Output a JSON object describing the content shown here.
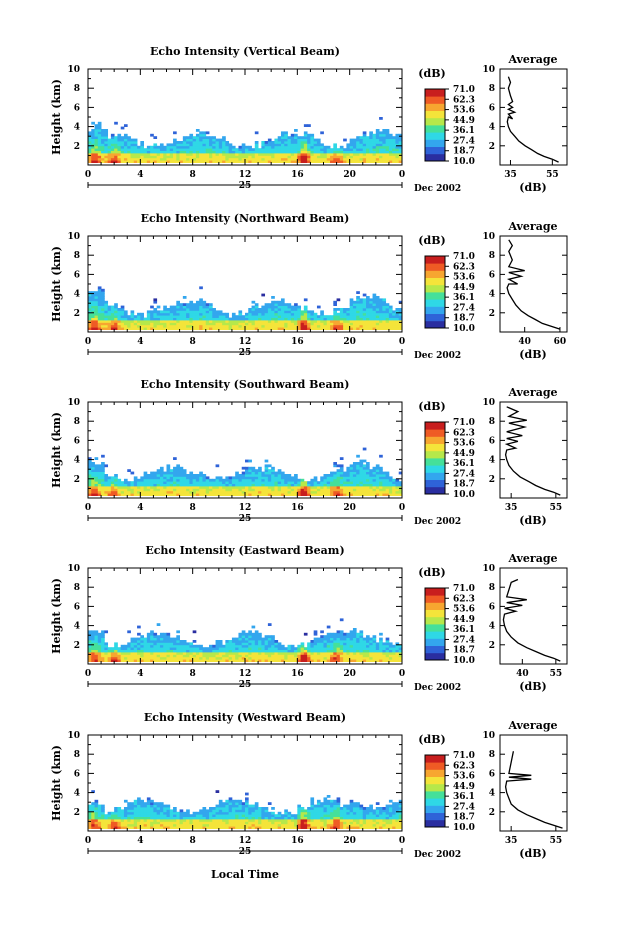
{
  "figure": {
    "bottom_xlabel": "Local Time",
    "colormap": [
      "#2a2ea0",
      "#2f63d8",
      "#33a6ee",
      "#2fd8e6",
      "#45e09a",
      "#b6e84a",
      "#f4e43a",
      "#f7a630",
      "#ef5b25",
      "#c81e1e"
    ],
    "colorbar_unit": "(dB)",
    "colorbar_ticks": [
      "71.0",
      "62.3",
      "53.6",
      "44.9",
      "36.1",
      "27.4",
      "18.7",
      "10.0"
    ],
    "time_ticks": [
      "0",
      "4",
      "8",
      "12",
      "16",
      "20",
      "0"
    ],
    "date_label": "25",
    "month_label": "Dec 2002",
    "height_ticks": [
      "10",
      "8",
      "6",
      "4",
      "2"
    ],
    "ylabel": "Height (km)",
    "avg_title": "Average",
    "avg_xlabel": "(dB)"
  },
  "chart_data": [
    {
      "type": "heatmap",
      "title": "Echo Intensity (Vertical Beam)",
      "xlabel": "Local Time",
      "ylabel": "Height (km)",
      "xlim": [
        0,
        24
      ],
      "ylim": [
        0,
        10
      ],
      "clim": [
        10.0,
        71.0
      ],
      "profile": {
        "title": "Average",
        "xlabel": "(dB)",
        "xticks": [
          "35",
          "55"
        ],
        "xlim": [
          30,
          62
        ],
        "points": [
          [
            58,
            0.3
          ],
          [
            55,
            0.6
          ],
          [
            51,
            0.9
          ],
          [
            48,
            1.2
          ],
          [
            45,
            1.6
          ],
          [
            42,
            2.0
          ],
          [
            39,
            2.5
          ],
          [
            37,
            3.0
          ],
          [
            35,
            3.5
          ],
          [
            34,
            4.0
          ],
          [
            33.5,
            4.5
          ],
          [
            34,
            5.0
          ],
          [
            36,
            4.8
          ],
          [
            34,
            5.3
          ],
          [
            37,
            5.5
          ],
          [
            34,
            5.8
          ],
          [
            36,
            6.0
          ],
          [
            34,
            6.3
          ],
          [
            36,
            6.6
          ],
          [
            35,
            7.2
          ],
          [
            34,
            8.0
          ],
          [
            35,
            8.6
          ],
          [
            34,
            9.2
          ]
        ]
      }
    },
    {
      "type": "heatmap",
      "title": "Echo Intensity (Northward Beam)",
      "xlabel": "Local Time",
      "ylabel": "Height (km)",
      "xlim": [
        0,
        24
      ],
      "ylim": [
        0,
        10
      ],
      "clim": [
        10.0,
        71.0
      ],
      "profile": {
        "title": "Average",
        "xlabel": "(dB)",
        "xticks": [
          "40",
          "60"
        ],
        "xlim": [
          26,
          64
        ],
        "points": [
          [
            60,
            0.3
          ],
          [
            55,
            0.6
          ],
          [
            50,
            0.9
          ],
          [
            46,
            1.3
          ],
          [
            42,
            1.7
          ],
          [
            38,
            2.2
          ],
          [
            35,
            2.8
          ],
          [
            33,
            3.4
          ],
          [
            31,
            4.0
          ],
          [
            30,
            4.6
          ],
          [
            31,
            5.0
          ],
          [
            36,
            5.0
          ],
          [
            31,
            5.5
          ],
          [
            38,
            5.8
          ],
          [
            31,
            6.2
          ],
          [
            40,
            6.4
          ],
          [
            31,
            6.8
          ],
          [
            33,
            7.5
          ],
          [
            31,
            8.4
          ],
          [
            33,
            9.0
          ],
          [
            31,
            9.6
          ]
        ]
      }
    },
    {
      "type": "heatmap",
      "title": "Echo Intensity (Southward Beam)",
      "xlabel": "Local Time",
      "ylabel": "Height (km)",
      "xlim": [
        0,
        24
      ],
      "ylim": [
        0,
        10
      ],
      "clim": [
        10.0,
        71.0
      ],
      "profile": {
        "title": "Average",
        "xlabel": "(dB)",
        "xticks": [
          "35",
          "55"
        ],
        "xlim": [
          30,
          60
        ],
        "points": [
          [
            57,
            0.3
          ],
          [
            54,
            0.6
          ],
          [
            50,
            0.9
          ],
          [
            46,
            1.3
          ],
          [
            43,
            1.7
          ],
          [
            39,
            2.2
          ],
          [
            36,
            2.8
          ],
          [
            34,
            3.4
          ],
          [
            33,
            4.0
          ],
          [
            32.5,
            4.5
          ],
          [
            33,
            5.0
          ],
          [
            37,
            5.2
          ],
          [
            33,
            5.6
          ],
          [
            38,
            5.9
          ],
          [
            33,
            6.2
          ],
          [
            40,
            6.5
          ],
          [
            33,
            6.9
          ],
          [
            41,
            7.4
          ],
          [
            34,
            7.8
          ],
          [
            42,
            8.1
          ],
          [
            34,
            8.5
          ],
          [
            38,
            9.0
          ],
          [
            33,
            9.5
          ]
        ]
      }
    },
    {
      "type": "heatmap",
      "title": "Echo Intensity (Eastward Beam)",
      "xlabel": "Local Time",
      "ylabel": "Height (km)",
      "xlim": [
        0,
        24
      ],
      "ylim": [
        0,
        10
      ],
      "clim": [
        10.0,
        71.0
      ],
      "profile": {
        "title": "Average",
        "xlabel": "(dB)",
        "xticks": [
          "40",
          "55"
        ],
        "xlim": [
          30,
          60
        ],
        "points": [
          [
            57,
            0.3
          ],
          [
            54,
            0.6
          ],
          [
            50,
            0.9
          ],
          [
            46,
            1.3
          ],
          [
            42,
            1.7
          ],
          [
            38,
            2.2
          ],
          [
            35,
            2.8
          ],
          [
            33,
            3.4
          ],
          [
            32,
            4.0
          ],
          [
            31.5,
            4.6
          ],
          [
            32,
            5.2
          ],
          [
            37,
            5.5
          ],
          [
            32,
            5.8
          ],
          [
            40,
            6.1
          ],
          [
            33,
            6.4
          ],
          [
            42,
            6.7
          ],
          [
            33,
            7.0
          ],
          [
            35,
            8.5
          ],
          [
            38,
            8.8
          ]
        ]
      }
    },
    {
      "type": "heatmap",
      "title": "Echo Intensity (Westward Beam)",
      "xlabel": "Local Time",
      "ylabel": "Height (km)",
      "xlim": [
        0,
        24
      ],
      "ylim": [
        0,
        10
      ],
      "clim": [
        10.0,
        71.0
      ],
      "profile": {
        "title": "Average",
        "xlabel": "(dB)",
        "xticks": [
          "35",
          "55"
        ],
        "xlim": [
          30,
          60
        ],
        "points": [
          [
            58,
            0.3
          ],
          [
            54,
            0.6
          ],
          [
            50,
            0.9
          ],
          [
            46,
            1.3
          ],
          [
            42,
            1.7
          ],
          [
            38,
            2.2
          ],
          [
            35,
            2.8
          ],
          [
            34,
            3.4
          ],
          [
            33,
            4.0
          ],
          [
            32.5,
            4.6
          ],
          [
            33,
            5.2
          ],
          [
            44,
            5.4
          ],
          [
            34,
            5.6
          ],
          [
            44,
            5.8
          ],
          [
            34,
            6.0
          ],
          [
            36,
            8.3
          ]
        ]
      }
    }
  ]
}
